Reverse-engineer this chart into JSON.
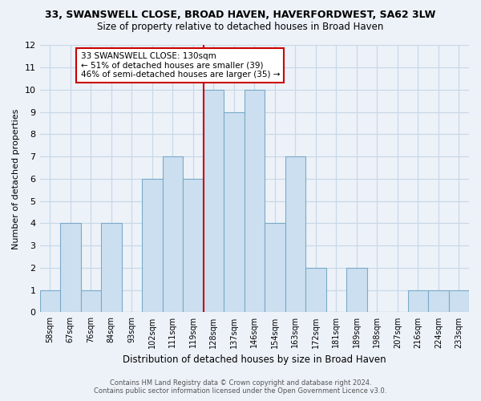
{
  "title_line1": "33, SWANSWELL CLOSE, BROAD HAVEN, HAVERFORDWEST, SA62 3LW",
  "title_line2": "Size of property relative to detached houses in Broad Haven",
  "xlabel": "Distribution of detached houses by size in Broad Haven",
  "ylabel": "Number of detached properties",
  "footnote_line1": "Contains HM Land Registry data © Crown copyright and database right 2024.",
  "footnote_line2": "Contains public sector information licensed under the Open Government Licence v3.0.",
  "bin_labels": [
    "58sqm",
    "67sqm",
    "76sqm",
    "84sqm",
    "93sqm",
    "102sqm",
    "111sqm",
    "119sqm",
    "128sqm",
    "137sqm",
    "146sqm",
    "154sqm",
    "163sqm",
    "172sqm",
    "181sqm",
    "189sqm",
    "198sqm",
    "207sqm",
    "216sqm",
    "224sqm",
    "233sqm"
  ],
  "counts": [
    1,
    4,
    1,
    4,
    0,
    6,
    7,
    6,
    10,
    9,
    10,
    4,
    7,
    2,
    0,
    2,
    0,
    0,
    1,
    1,
    1
  ],
  "bar_color": "#ccdff0",
  "bar_edgecolor": "#7aaac8",
  "ref_line_after_bar": 7,
  "ref_line_color": "#cc0000",
  "ylim": [
    0,
    12
  ],
  "yticks": [
    0,
    1,
    2,
    3,
    4,
    5,
    6,
    7,
    8,
    9,
    10,
    11,
    12
  ],
  "annotation_text_line1": "33 SWANSWELL CLOSE: 130sqm",
  "annotation_text_line2": "← 51% of detached houses are smaller (39)",
  "annotation_text_line3": "46% of semi-detached houses are larger (35) →",
  "annotation_edgecolor": "#cc0000",
  "background_color": "#edf2f9",
  "grid_color": "#c8d8e8"
}
